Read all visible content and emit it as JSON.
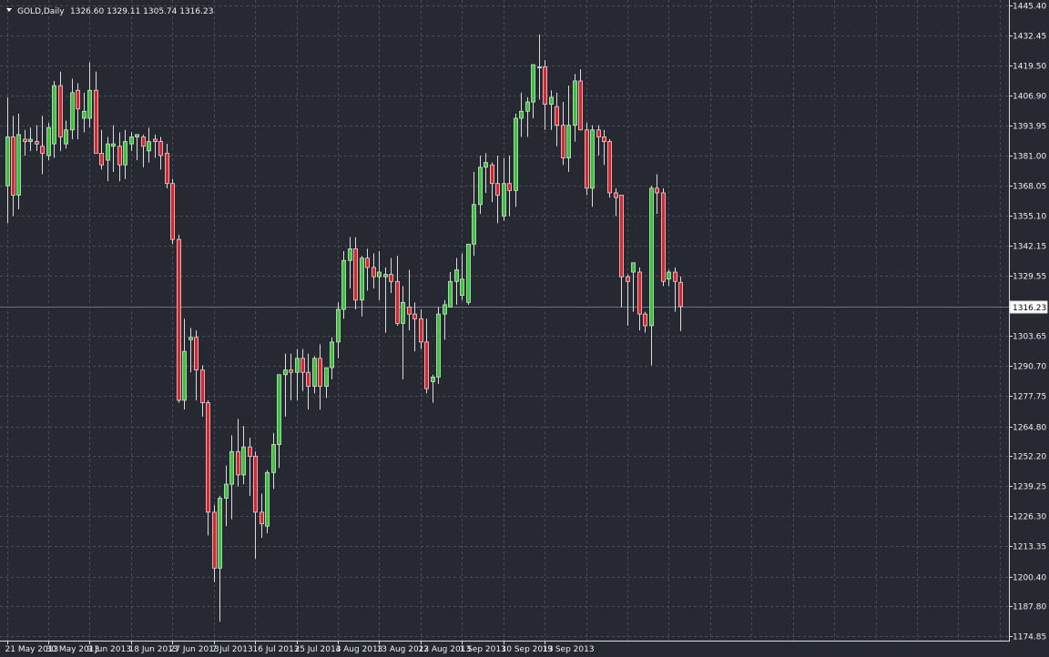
{
  "header": {
    "symbol": "GOLD,Daily",
    "ohlc": "1326.60 1329.11 1305.74 1316.23"
  },
  "price_label": "1316.23",
  "chart_data": {
    "type": "candlestick",
    "symbol": "GOLD",
    "timeframe": "Daily",
    "ylim": [
      1174.85,
      1445.4
    ],
    "y_ticks": [
      "1445.40",
      "1432.45",
      "1419.50",
      "1406.90",
      "1393.95",
      "1381.00",
      "1368.05",
      "1355.10",
      "1342.15",
      "1329.55",
      "1316.23",
      "1303.65",
      "1290.70",
      "1277.75",
      "1264.80",
      "1252.20",
      "1239.25",
      "1226.30",
      "1213.35",
      "1200.40",
      "1187.80",
      "1174.85"
    ],
    "x_ticks": [
      {
        "index": 0,
        "label": "21 May 2013"
      },
      {
        "index": 7,
        "label": "30 May 2013"
      },
      {
        "index": 14,
        "label": "9 Jun 2013"
      },
      {
        "index": 21,
        "label": "18 Jun 2013"
      },
      {
        "index": 28,
        "label": "27 Jun 2013"
      },
      {
        "index": 35,
        "label": "7 Jul 2013"
      },
      {
        "index": 42,
        "label": "16 Jul 2013"
      },
      {
        "index": 49,
        "label": "25 Jul 2013"
      },
      {
        "index": 56,
        "label": "4 Aug 2013"
      },
      {
        "index": 63,
        "label": "13 Aug 2013"
      },
      {
        "index": 70,
        "label": "22 Aug 2013"
      },
      {
        "index": 77,
        "label": "1 Sep 2013"
      },
      {
        "index": 84,
        "label": "10 Sep 2013"
      },
      {
        "index": 91,
        "label": "19 Sep 2013"
      }
    ],
    "last_price": 1316.23,
    "grid": true,
    "colors": {
      "background": "#262832",
      "grid": "#4a4c58",
      "bull": "#2ecc2e",
      "bear": "#e8202a",
      "wick": "#dcdcdc",
      "text": "#f0f0f0"
    },
    "candles": [
      {
        "o": 1368,
        "h": 1406,
        "l": 1352,
        "c": 1389
      },
      {
        "o": 1389,
        "h": 1398,
        "l": 1355,
        "c": 1364
      },
      {
        "o": 1364,
        "h": 1399,
        "l": 1358,
        "c": 1390
      },
      {
        "o": 1388,
        "h": 1392,
        "l": 1381,
        "c": 1387
      },
      {
        "o": 1387,
        "h": 1393,
        "l": 1383,
        "c": 1388
      },
      {
        "o": 1387,
        "h": 1394,
        "l": 1383,
        "c": 1386
      },
      {
        "o": 1385,
        "h": 1398,
        "l": 1373,
        "c": 1382
      },
      {
        "o": 1381,
        "h": 1395,
        "l": 1379,
        "c": 1393
      },
      {
        "o": 1386,
        "h": 1413,
        "l": 1380,
        "c": 1411
      },
      {
        "o": 1411,
        "h": 1417,
        "l": 1383,
        "c": 1389
      },
      {
        "o": 1386,
        "h": 1396,
        "l": 1384,
        "c": 1392
      },
      {
        "o": 1392,
        "h": 1414,
        "l": 1388,
        "c": 1408
      },
      {
        "o": 1409,
        "h": 1412,
        "l": 1388,
        "c": 1401
      },
      {
        "o": 1397,
        "h": 1408,
        "l": 1391,
        "c": 1400
      },
      {
        "o": 1397,
        "h": 1421,
        "l": 1393,
        "c": 1409
      },
      {
        "o": 1409,
        "h": 1417,
        "l": 1383,
        "c": 1382
      },
      {
        "o": 1382,
        "h": 1392,
        "l": 1375,
        "c": 1377
      },
      {
        "o": 1379,
        "h": 1389,
        "l": 1370,
        "c": 1386
      },
      {
        "o": 1385,
        "h": 1394,
        "l": 1374,
        "c": 1386
      },
      {
        "o": 1385,
        "h": 1391,
        "l": 1370,
        "c": 1377
      },
      {
        "o": 1377,
        "h": 1392,
        "l": 1371,
        "c": 1387
      },
      {
        "o": 1386,
        "h": 1391,
        "l": 1383,
        "c": 1389
      },
      {
        "o": 1389,
        "h": 1390,
        "l": 1379,
        "c": 1390
      },
      {
        "o": 1389,
        "h": 1390,
        "l": 1376,
        "c": 1385
      },
      {
        "o": 1383,
        "h": 1393,
        "l": 1378,
        "c": 1387
      },
      {
        "o": 1388,
        "h": 1390,
        "l": 1380,
        "c": 1387
      },
      {
        "o": 1387,
        "h": 1389,
        "l": 1375,
        "c": 1381
      },
      {
        "o": 1382,
        "h": 1386,
        "l": 1367,
        "c": 1369
      },
      {
        "o": 1369,
        "h": 1371,
        "l": 1343,
        "c": 1345
      },
      {
        "o": 1345,
        "h": 1347,
        "l": 1275,
        "c": 1276
      },
      {
        "o": 1276,
        "h": 1311,
        "l": 1272,
        "c": 1297
      },
      {
        "o": 1302,
        "h": 1307,
        "l": 1288,
        "c": 1303
      },
      {
        "o": 1303,
        "h": 1306,
        "l": 1276,
        "c": 1289
      },
      {
        "o": 1289,
        "h": 1291,
        "l": 1269,
        "c": 1275
      },
      {
        "o": 1275,
        "h": 1276,
        "l": 1218,
        "c": 1228
      },
      {
        "o": 1228,
        "h": 1231,
        "l": 1198,
        "c": 1204
      },
      {
        "o": 1204,
        "h": 1235,
        "l": 1181,
        "c": 1234
      },
      {
        "o": 1234,
        "h": 1248,
        "l": 1222,
        "c": 1240
      },
      {
        "o": 1240,
        "h": 1261,
        "l": 1225,
        "c": 1254
      },
      {
        "o": 1254,
        "h": 1268,
        "l": 1239,
        "c": 1244
      },
      {
        "o": 1244,
        "h": 1265,
        "l": 1240,
        "c": 1256
      },
      {
        "o": 1256,
        "h": 1260,
        "l": 1235,
        "c": 1252
      },
      {
        "o": 1252,
        "h": 1254,
        "l": 1208,
        "c": 1228
      },
      {
        "o": 1228,
        "h": 1236,
        "l": 1217,
        "c": 1223
      },
      {
        "o": 1222,
        "h": 1246,
        "l": 1219,
        "c": 1245
      },
      {
        "o": 1245,
        "h": 1262,
        "l": 1238,
        "c": 1257
      },
      {
        "o": 1257,
        "h": 1287,
        "l": 1247,
        "c": 1287
      },
      {
        "o": 1287,
        "h": 1296,
        "l": 1269,
        "c": 1289
      },
      {
        "o": 1289,
        "h": 1296,
        "l": 1276,
        "c": 1288
      },
      {
        "o": 1288,
        "h": 1298,
        "l": 1276,
        "c": 1294
      },
      {
        "o": 1294,
        "h": 1298,
        "l": 1280,
        "c": 1288
      },
      {
        "o": 1288,
        "h": 1296,
        "l": 1272,
        "c": 1282
      },
      {
        "o": 1282,
        "h": 1295,
        "l": 1279,
        "c": 1294
      },
      {
        "o": 1294,
        "h": 1300,
        "l": 1272,
        "c": 1282
      },
      {
        "o": 1282,
        "h": 1289,
        "l": 1277,
        "c": 1290
      },
      {
        "o": 1290,
        "h": 1303,
        "l": 1285,
        "c": 1301
      },
      {
        "o": 1301,
        "h": 1318,
        "l": 1294,
        "c": 1315
      },
      {
        "o": 1315,
        "h": 1340,
        "l": 1311,
        "c": 1336
      },
      {
        "o": 1336,
        "h": 1346,
        "l": 1324,
        "c": 1341
      },
      {
        "o": 1341,
        "h": 1346,
        "l": 1315,
        "c": 1319
      },
      {
        "o": 1319,
        "h": 1338,
        "l": 1312,
        "c": 1337
      },
      {
        "o": 1337,
        "h": 1341,
        "l": 1323,
        "c": 1333
      },
      {
        "o": 1333,
        "h": 1339,
        "l": 1324,
        "c": 1329
      },
      {
        "o": 1329,
        "h": 1340,
        "l": 1319,
        "c": 1331
      },
      {
        "o": 1329,
        "h": 1333,
        "l": 1305,
        "c": 1330
      },
      {
        "o": 1330,
        "h": 1337,
        "l": 1322,
        "c": 1327
      },
      {
        "o": 1327,
        "h": 1338,
        "l": 1308,
        "c": 1309
      },
      {
        "o": 1309,
        "h": 1325,
        "l": 1285,
        "c": 1318
      },
      {
        "o": 1316,
        "h": 1332,
        "l": 1306,
        "c": 1313
      },
      {
        "o": 1313,
        "h": 1318,
        "l": 1297,
        "c": 1311
      },
      {
        "o": 1311,
        "h": 1315,
        "l": 1298,
        "c": 1301
      },
      {
        "o": 1301,
        "h": 1311,
        "l": 1279,
        "c": 1281
      },
      {
        "o": 1284,
        "h": 1287,
        "l": 1275,
        "c": 1286
      },
      {
        "o": 1286,
        "h": 1316,
        "l": 1283,
        "c": 1313
      },
      {
        "o": 1313,
        "h": 1319,
        "l": 1302,
        "c": 1317
      },
      {
        "o": 1316,
        "h": 1331,
        "l": 1316,
        "c": 1327
      },
      {
        "o": 1327,
        "h": 1337,
        "l": 1317,
        "c": 1332
      },
      {
        "o": 1321,
        "h": 1339,
        "l": 1319,
        "c": 1328
      },
      {
        "o": 1318,
        "h": 1343,
        "l": 1317,
        "c": 1343
      },
      {
        "o": 1343,
        "h": 1374,
        "l": 1338,
        "c": 1360
      },
      {
        "o": 1360,
        "h": 1381,
        "l": 1356,
        "c": 1376
      },
      {
        "o": 1376,
        "h": 1382,
        "l": 1365,
        "c": 1378
      },
      {
        "o": 1377,
        "h": 1378,
        "l": 1361,
        "c": 1369
      },
      {
        "o": 1369,
        "h": 1381,
        "l": 1352,
        "c": 1364
      },
      {
        "o": 1355,
        "h": 1380,
        "l": 1353,
        "c": 1369
      },
      {
        "o": 1369,
        "h": 1381,
        "l": 1355,
        "c": 1366
      },
      {
        "o": 1366,
        "h": 1399,
        "l": 1359,
        "c": 1397
      },
      {
        "o": 1397,
        "h": 1408,
        "l": 1389,
        "c": 1400
      },
      {
        "o": 1400,
        "h": 1406,
        "l": 1389,
        "c": 1404
      },
      {
        "o": 1404,
        "h": 1420,
        "l": 1397,
        "c": 1420
      },
      {
        "o": 1419,
        "h": 1433,
        "l": 1405,
        "c": 1419
      },
      {
        "o": 1419,
        "h": 1422,
        "l": 1392,
        "c": 1403
      },
      {
        "o": 1403,
        "h": 1409,
        "l": 1392,
        "c": 1406
      },
      {
        "o": 1402,
        "h": 1408,
        "l": 1385,
        "c": 1394
      },
      {
        "o": 1394,
        "h": 1404,
        "l": 1377,
        "c": 1380
      },
      {
        "o": 1380,
        "h": 1411,
        "l": 1374,
        "c": 1394
      },
      {
        "o": 1394,
        "h": 1416,
        "l": 1387,
        "c": 1413
      },
      {
        "o": 1413,
        "h": 1418,
        "l": 1392,
        "c": 1392
      },
      {
        "o": 1392,
        "h": 1395,
        "l": 1364,
        "c": 1367
      },
      {
        "o": 1367,
        "h": 1394,
        "l": 1359,
        "c": 1392
      },
      {
        "o": 1392,
        "h": 1394,
        "l": 1381,
        "c": 1389
      },
      {
        "o": 1389,
        "h": 1392,
        "l": 1377,
        "c": 1387
      },
      {
        "o": 1387,
        "h": 1388,
        "l": 1363,
        "c": 1365
      },
      {
        "o": 1365,
        "h": 1367,
        "l": 1355,
        "c": 1363
      },
      {
        "o": 1364,
        "h": 1364,
        "l": 1316,
        "c": 1329
      },
      {
        "o": 1329,
        "h": 1330,
        "l": 1308,
        "c": 1327
      },
      {
        "o": 1331,
        "h": 1335,
        "l": 1314,
        "c": 1335
      },
      {
        "o": 1331,
        "h": 1333,
        "l": 1306,
        "c": 1313
      },
      {
        "o": 1313,
        "h": 1314,
        "l": 1305,
        "c": 1308
      },
      {
        "o": 1308,
        "h": 1368,
        "l": 1291,
        "c": 1367
      },
      {
        "o": 1367,
        "h": 1373,
        "l": 1356,
        "c": 1365
      },
      {
        "o": 1365,
        "h": 1367,
        "l": 1325,
        "c": 1327
      },
      {
        "o": 1328,
        "h": 1332,
        "l": 1325,
        "c": 1331
      },
      {
        "o": 1331,
        "h": 1333,
        "l": 1314,
        "c": 1327
      },
      {
        "o": 1326.6,
        "h": 1329.11,
        "l": 1305.74,
        "c": 1316.23
      }
    ]
  }
}
